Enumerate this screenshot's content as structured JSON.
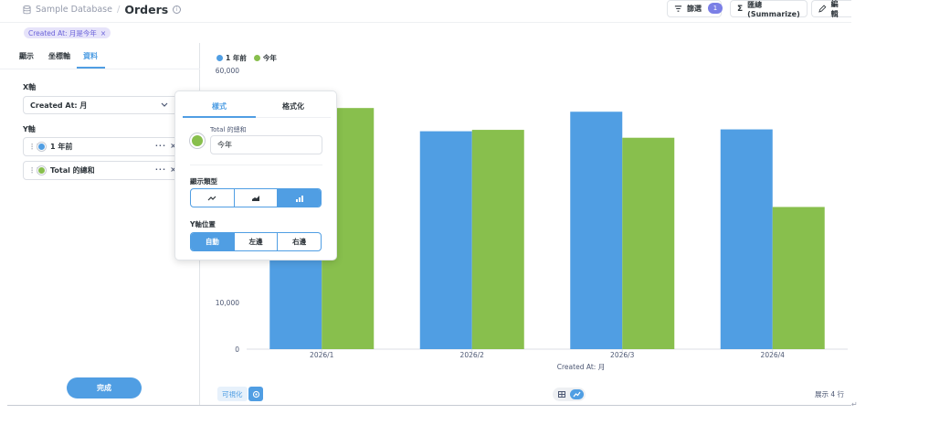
{
  "header": {
    "database": "Sample Database",
    "separator": "/",
    "title": "Orders",
    "filter_label": "篩選",
    "filter_count": "1",
    "summarize_label": "匯總(Summarize)",
    "edit_label": "編輯"
  },
  "filter_pill": {
    "label": "Created At: 月是今年",
    "close": "×"
  },
  "left_panel": {
    "tabs": [
      {
        "label": "顯示"
      },
      {
        "label": "坐標軸"
      },
      {
        "label": "資料"
      }
    ],
    "active_tab": "資料",
    "x_axis_label": "X軸",
    "x_axis_value": "Created At: 月",
    "y_axis_label": "Y軸",
    "y_items": [
      {
        "label": "1 年前",
        "color": "#509ee3"
      },
      {
        "label": "Total 的總和",
        "color": "#88bf4d"
      }
    ],
    "done_label": "完成"
  },
  "popover": {
    "tabs": [
      {
        "label": "樣式"
      },
      {
        "label": "格式化"
      }
    ],
    "series_source": "Total 的總和",
    "series_name": "今年",
    "series_color": "#88bf4d",
    "display_type_label": "顯示類型",
    "display_types": [
      {
        "icon": "line-chart-icon",
        "active": false
      },
      {
        "icon": "area-chart-icon",
        "active": false
      },
      {
        "icon": "bar-chart-icon",
        "active": true
      }
    ],
    "y_position_label": "Y軸位置",
    "y_positions": [
      {
        "label": "自動",
        "active": true
      },
      {
        "label": "左邊",
        "active": false
      },
      {
        "label": "右邊",
        "active": false
      }
    ]
  },
  "chart_data": {
    "type": "bar",
    "categories": [
      "2026/1",
      "2026/2",
      "2026/3",
      "2026/4"
    ],
    "series": [
      {
        "name": "1 年前",
        "color": "#509ee3",
        "values": [
          51300,
          46900,
          51100,
          47300
        ]
      },
      {
        "name": "今年",
        "color": "#88bf4d",
        "values": [
          51900,
          47200,
          45500,
          30600
        ]
      }
    ],
    "xlabel": "Created At: 月",
    "ylabel": "",
    "ylim": [
      0,
      60000
    ],
    "y_ticks": [
      0,
      10000,
      60000
    ],
    "y_tick_labels": [
      "0",
      "10,000",
      "60,000"
    ],
    "grid": false,
    "legend": "top-left"
  },
  "footer": {
    "visualization_label": "可視化",
    "row_count": "展示 4 行"
  }
}
